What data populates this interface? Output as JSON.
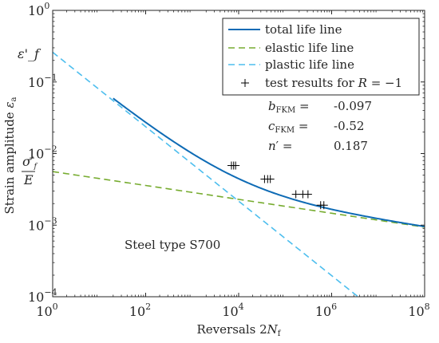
{
  "chart_data": {
    "type": "line",
    "title": "",
    "xlabel": "Reversals 2N_f",
    "ylabel": "Strain amplitude ε_a",
    "xscale": "log",
    "yscale": "log",
    "xlim": [
      1,
      100000000
    ],
    "ylim": [
      0.0001,
      1
    ],
    "grid": false,
    "legend_position": "top-right",
    "x_ticks": [
      {
        "value": 1,
        "label": "10^0"
      },
      {
        "value": 100,
        "label": "10^2"
      },
      {
        "value": 10000,
        "label": "10^4"
      },
      {
        "value": 1000000,
        "label": "10^6"
      },
      {
        "value": 100000000,
        "label": "10^8"
      }
    ],
    "y_ticks": [
      {
        "value": 0.0001,
        "label": "10^-4"
      },
      {
        "value": 0.001,
        "label": "10^-3"
      },
      {
        "value": 0.01,
        "label": "10^-2"
      },
      {
        "value": 0.1,
        "label": "10^-1"
      },
      {
        "value": 1,
        "label": "10^0"
      }
    ],
    "y_axis_markers": [
      {
        "value": 0.26,
        "label": "ε'_f"
      },
      {
        "value": 0.0056,
        "label": "σ'_f / E"
      }
    ],
    "parameters": {
      "strain_coeff_fatigue": 0.26,
      "elastic_intercept": 0.0056,
      "b_FKM": -0.097,
      "c_FKM": -0.52,
      "n_prime": 0.187
    },
    "series": [
      {
        "name": "total life line",
        "style": "solid",
        "color": "#0e6bb5",
        "x_range": [
          20,
          100000000
        ]
      },
      {
        "name": "elastic life line",
        "style": "dashed",
        "color": "#77ac30",
        "x_range": [
          1,
          100000000
        ]
      },
      {
        "name": "plastic life line",
        "style": "dashed",
        "color": "#4dbeee",
        "x_range": [
          1,
          4000000
        ]
      },
      {
        "name": "test results for R = −1",
        "style": "markers",
        "marker": "+",
        "color": "#000000",
        "points": [
          {
            "x": 7000,
            "y": 0.0068
          },
          {
            "x": 7800,
            "y": 0.0068
          },
          {
            "x": 8600,
            "y": 0.0068
          },
          {
            "x": 36000,
            "y": 0.0044
          },
          {
            "x": 42000,
            "y": 0.0044
          },
          {
            "x": 48000,
            "y": 0.0044
          },
          {
            "x": 170000,
            "y": 0.0027
          },
          {
            "x": 240000,
            "y": 0.0027
          },
          {
            "x": 310000,
            "y": 0.0027
          },
          {
            "x": 580000,
            "y": 0.0019
          },
          {
            "x": 680000,
            "y": 0.0019
          }
        ]
      }
    ],
    "annotations": [
      {
        "name": "b",
        "label": "b_FKM =",
        "value": "-0.097"
      },
      {
        "name": "c",
        "label": "c_FKM =",
        "value": "-0.52"
      },
      {
        "name": "n",
        "label": "n′ =",
        "value": "0.187"
      },
      {
        "name": "material",
        "text": "Steel type S700"
      }
    ]
  }
}
